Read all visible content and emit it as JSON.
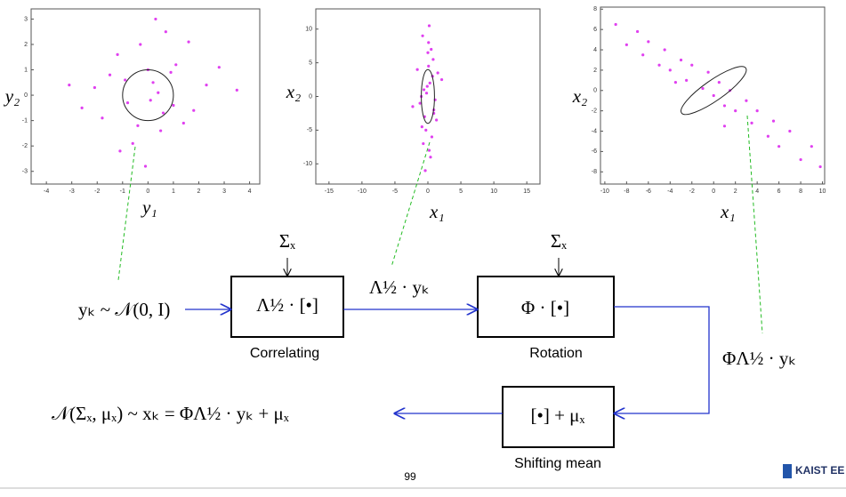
{
  "chart_data": [
    {
      "type": "scatter",
      "xlabel": "y₁",
      "ylabel": "y₂",
      "color": "#e040f0",
      "xlim": [
        -4.6,
        4.4
      ],
      "ylim": [
        -3.5,
        3.4
      ],
      "xticks": [
        -4,
        -3,
        -2,
        -1,
        0,
        1,
        2,
        3,
        4
      ],
      "yticks": [
        -3,
        -2,
        -1,
        0,
        1,
        2,
        3
      ],
      "ellipse": {
        "cx": 0,
        "cy": 0,
        "rx": 1,
        "ry": 1,
        "angle": 0
      },
      "x": [
        0.2,
        -0.8,
        1.1,
        -1.5,
        0.5,
        -0.3,
        1.8,
        -2.1,
        0.9,
        -0.6,
        0.1,
        1.4,
        -1.2,
        2.3,
        -0.1,
        0.7,
        -1.8,
        0.4,
        -0.9,
        1.0,
        -2.6,
        2.8,
        0.0,
        -0.4,
        1.6,
        -1.1,
        0.6,
        3.5,
        -3.1,
        0.3
      ],
      "y": [
        0.5,
        -0.3,
        1.2,
        0.8,
        -1.4,
        2.0,
        -0.6,
        0.3,
        0.9,
        -1.9,
        -0.2,
        -1.1,
        1.6,
        0.4,
        -2.8,
        2.5,
        -0.9,
        0.1,
        0.6,
        -0.4,
        -0.5,
        1.1,
        1.0,
        -1.2,
        2.1,
        -2.2,
        -0.7,
        0.2,
        0.4,
        3.0
      ]
    },
    {
      "type": "scatter",
      "xlabel": "x₁",
      "ylabel": "x₂",
      "color": "#e040f0",
      "xlim": [
        -17,
        17
      ],
      "ylim": [
        -13,
        13
      ],
      "xticks": [
        -15,
        -10,
        -5,
        0,
        5,
        10,
        15
      ],
      "yticks": [
        -10,
        -5,
        0,
        5,
        10
      ],
      "ellipse": {
        "cx": 0,
        "cy": 0,
        "rx": 1,
        "ry": 4,
        "angle": 0
      },
      "x": [
        0.3,
        -0.5,
        0.8,
        -1.2,
        0.1,
        0.6,
        -0.2,
        1.5,
        -0.9,
        0.4,
        -0.1,
        0.9,
        -1.6,
        0.2,
        -0.7,
        1.1,
        0.0,
        -0.4,
        2.1,
        -2.3,
        0.5,
        -0.3,
        0.7,
        -0.8,
        1.3,
        -1.0,
        0.2,
        -0.6,
        0.9,
        0.1
      ],
      "y": [
        2,
        -3,
        5.5,
        -1,
        8,
        -6,
        0.5,
        3.5,
        -4.5,
        -9,
        1.5,
        -2,
        4,
        10.5,
        -7,
        -0.5,
        6.5,
        -11,
        2.5,
        -1.5,
        7,
        -5,
        3,
        9,
        -3.5,
        0,
        -8,
        1,
        -2.5,
        4.5
      ]
    },
    {
      "type": "scatter",
      "xlabel": "x₁",
      "ylabel": "x₂",
      "color": "#e040f0",
      "xlim": [
        -10.4,
        10.2
      ],
      "ylim": [
        -9.2,
        8.2
      ],
      "xticks": [
        -10,
        -8,
        -6,
        -4,
        -2,
        0,
        2,
        4,
        6,
        8,
        10
      ],
      "yticks": [
        -8,
        -6,
        -4,
        -2,
        0,
        2,
        4,
        6,
        8
      ],
      "ellipse": {
        "cx": 0,
        "cy": 0,
        "rx": 3.6,
        "ry": 1,
        "angle": -35
      },
      "x": [
        -9,
        -8,
        -7,
        -6.5,
        -6,
        -5,
        -4.5,
        -4,
        -3,
        -2.5,
        -2,
        -1,
        -0.5,
        0,
        0.5,
        1,
        1.5,
        2,
        3,
        3.5,
        4,
        5,
        5.5,
        6,
        7,
        8,
        9,
        9.8,
        -3.5,
        1
      ],
      "y": [
        6.5,
        4.5,
        5.8,
        3.5,
        4.8,
        2.5,
        4.0,
        2.0,
        3.0,
        1.0,
        2.5,
        0.2,
        1.8,
        -0.5,
        0.8,
        -1.5,
        0.0,
        -2.0,
        -1.0,
        -3.2,
        -2.0,
        -4.5,
        -3.0,
        -5.5,
        -4.0,
        -6.8,
        -5.5,
        -7.5,
        0.8,
        -3.5
      ]
    }
  ],
  "diagram": {
    "input": "yₖ ~ 𝒩(0, I)",
    "sigma": "Σₓ",
    "box1": "Λ½ · [•]",
    "caption1": "Correlating",
    "mid1": "Λ½ · yₖ",
    "box2": "Φ · [•]",
    "caption2": "Rotation",
    "mid2": "ΦΛ½ · yₖ",
    "box3": "[•] + μₓ",
    "caption3": "Shifting mean",
    "output": "𝒩(Σₓ, μₓ) ~  xₖ = ΦΛ½ · yₖ + μₓ",
    "page": "99",
    "logo": "KAIST EE"
  }
}
